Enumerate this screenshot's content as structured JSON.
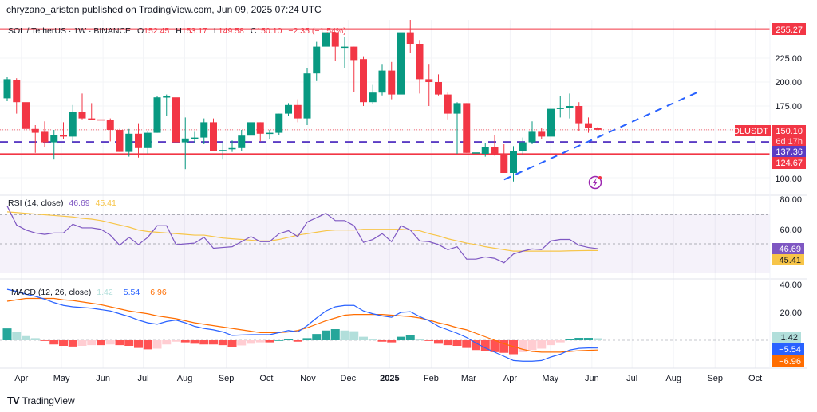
{
  "header": {
    "published": "chryzano_ariston published on TradingView.com, Jun 09, 2025 07:24 UTC"
  },
  "legend": {
    "symbol": "SOL / TetherUS · 1W · BINANCE",
    "o_label": "O",
    "o": "152.45",
    "h_label": "H",
    "h": "153.17",
    "l_label": "L",
    "l": "149.58",
    "c_label": "C",
    "c": "150.10",
    "change": "−2.35 (−1.54%)"
  },
  "rsi_legend": {
    "title": "RSI (14, close)",
    "rsi": "46.69",
    "ma": "45.41"
  },
  "macd_legend": {
    "title": "MACD (12, 26, close)",
    "hist": "1.42",
    "macd": "−5.54",
    "signal": "−6.96"
  },
  "badges": {
    "resistance": "255.27",
    "symbol": "SOLUSDT",
    "last": "150.10",
    "countdown": "6d 17h",
    "mid": "137.36",
    "support": "124.67",
    "rsi": "46.69",
    "rsi_ma": "45.41",
    "hist": "1.42",
    "macd": "−5.54",
    "signal": "−6.96"
  },
  "price_axis": [
    "225.00",
    "200.00",
    "175.00",
    "100.00"
  ],
  "rsi_axis": [
    "80.00",
    "60.00"
  ],
  "macd_axis": [
    "40.00",
    "20.00"
  ],
  "footer": {
    "brand": "TradingView"
  },
  "colors": {
    "up": "#089981",
    "down": "#f23645",
    "rsi": "#7e57c2",
    "rsi_ma": "#f7c548",
    "macd": "#2962ff",
    "signal": "#ff6d00",
    "level": "#f23645",
    "mid": "#5b3cc4",
    "trend": "#2962ff"
  },
  "icons": {
    "lightning": "lightning-icon",
    "logo": "tradingview-logo"
  },
  "chart_data": {
    "type": "candlestick",
    "symbol": "SOL / TetherUS",
    "interval": "1W",
    "exchange": "BINANCE",
    "price_range": [
      80,
      262
    ],
    "x_ticks": [
      {
        "label": "Apr",
        "date": "2024-04-01"
      },
      {
        "label": "May",
        "date": "2024-05-01"
      },
      {
        "label": "Jun",
        "date": "2024-06-01"
      },
      {
        "label": "Jul",
        "date": "2024-07-01"
      },
      {
        "label": "Aug",
        "date": "2024-08-01"
      },
      {
        "label": "Sep",
        "date": "2024-09-01"
      },
      {
        "label": "Oct",
        "date": "2024-10-01"
      },
      {
        "label": "Nov",
        "date": "2024-11-01"
      },
      {
        "label": "Dec",
        "date": "2024-12-01"
      },
      {
        "label": "2025",
        "date": "2025-01-01"
      },
      {
        "label": "Feb",
        "date": "2025-02-01"
      },
      {
        "label": "Mar",
        "date": "2025-03-01"
      },
      {
        "label": "Apr",
        "date": "2025-04-01"
      },
      {
        "label": "May",
        "date": "2025-05-01"
      },
      {
        "label": "Jun",
        "date": "2025-06-01"
      },
      {
        "label": "Jul",
        "date": "2025-07-01"
      },
      {
        "label": "Aug",
        "date": "2025-08-01"
      },
      {
        "label": "Sep",
        "date": "2025-09-01"
      },
      {
        "label": "Oct",
        "date": "2025-10-01"
      }
    ],
    "candles_columns": [
      "date",
      "open",
      "high",
      "low",
      "close"
    ],
    "candles": [
      [
        "2024-03-25",
        183,
        205,
        180,
        203
      ],
      [
        "2024-04-01",
        202,
        204,
        167,
        179
      ],
      [
        "2024-04-08",
        179,
        184,
        117,
        151
      ],
      [
        "2024-04-15",
        151,
        155,
        126,
        147
      ],
      [
        "2024-04-22",
        148,
        159,
        132,
        137
      ],
      [
        "2024-04-29",
        137,
        150,
        119,
        145
      ],
      [
        "2024-05-06",
        145,
        158,
        140,
        143
      ],
      [
        "2024-05-13",
        143,
        176,
        137,
        169
      ],
      [
        "2024-05-20",
        169,
        188,
        161,
        162
      ],
      [
        "2024-05-27",
        162,
        178,
        160,
        161
      ],
      [
        "2024-06-03",
        161,
        175,
        152,
        160
      ],
      [
        "2024-06-10",
        160,
        162,
        138,
        150
      ],
      [
        "2024-06-17",
        150,
        151,
        127,
        127
      ],
      [
        "2024-06-24",
        127,
        151,
        122,
        146
      ],
      [
        "2024-07-01",
        146,
        157,
        121,
        131
      ],
      [
        "2024-07-08",
        131,
        149,
        125,
        147
      ],
      [
        "2024-07-15",
        147,
        185,
        147,
        184
      ],
      [
        "2024-07-22",
        184,
        187,
        165,
        185
      ],
      [
        "2024-07-29",
        184,
        192,
        132,
        137
      ],
      [
        "2024-08-05",
        137,
        163,
        109,
        141
      ],
      [
        "2024-08-12",
        141,
        148,
        136,
        142
      ],
      [
        "2024-08-19",
        142,
        162,
        135,
        158
      ],
      [
        "2024-08-26",
        158,
        162,
        128,
        128
      ],
      [
        "2024-09-02",
        128,
        137,
        119,
        129
      ],
      [
        "2024-09-09",
        130,
        139,
        127,
        131
      ],
      [
        "2024-09-16",
        131,
        150,
        128,
        144
      ],
      [
        "2024-09-23",
        144,
        160,
        142,
        158
      ],
      [
        "2024-09-30",
        158,
        158,
        138,
        146
      ],
      [
        "2024-10-07",
        146,
        150,
        140,
        147
      ],
      [
        "2024-10-14",
        147,
        167,
        145,
        167
      ],
      [
        "2024-10-21",
        167,
        178,
        165,
        176
      ],
      [
        "2024-10-28",
        176,
        182,
        158,
        162
      ],
      [
        "2024-11-04",
        162,
        215,
        155,
        209
      ],
      [
        "2024-11-11",
        209,
        242,
        201,
        237
      ],
      [
        "2024-11-18",
        237,
        263,
        229,
        252
      ],
      [
        "2024-11-25",
        252,
        252,
        222,
        237
      ],
      [
        "2024-12-02",
        236,
        247,
        215,
        237
      ],
      [
        "2024-12-09",
        237,
        237,
        190,
        223
      ],
      [
        "2024-12-16",
        224,
        227,
        175,
        179
      ],
      [
        "2024-12-23",
        179,
        197,
        177,
        189
      ],
      [
        "2024-12-30",
        189,
        219,
        186,
        212
      ],
      [
        "2025-01-06",
        212,
        221,
        182,
        187
      ],
      [
        "2025-01-13",
        187,
        266,
        169,
        252
      ],
      [
        "2025-01-20",
        252,
        266,
        230,
        240
      ],
      [
        "2025-01-27",
        240,
        244,
        188,
        203
      ],
      [
        "2025-02-03",
        203,
        219,
        175,
        200
      ],
      [
        "2025-02-10",
        200,
        208,
        186,
        187
      ],
      [
        "2025-02-17",
        187,
        189,
        161,
        167
      ],
      [
        "2025-02-24",
        167,
        179,
        125,
        178
      ],
      [
        "2025-03-03",
        178,
        178,
        126,
        126
      ],
      [
        "2025-03-10",
        126,
        134,
        112,
        126.5
      ],
      [
        "2025-03-17",
        125,
        136,
        122,
        132
      ],
      [
        "2025-03-24",
        132,
        145,
        123,
        125
      ],
      [
        "2025-03-31",
        125,
        135,
        105,
        105
      ],
      [
        "2025-04-07",
        105,
        133,
        96,
        128
      ],
      [
        "2025-04-14",
        128,
        142,
        124,
        137
      ],
      [
        "2025-04-21",
        137,
        159,
        135,
        148
      ],
      [
        "2025-04-28",
        148,
        152,
        140,
        143
      ],
      [
        "2025-05-05",
        143,
        180,
        142,
        172
      ],
      [
        "2025-05-12",
        172,
        185,
        163,
        173
      ],
      [
        "2025-05-19",
        173,
        188,
        162,
        175
      ],
      [
        "2025-05-26",
        175,
        179,
        149,
        157
      ],
      [
        "2025-06-02",
        157,
        163,
        147,
        152
      ],
      [
        "2025-06-09",
        152.45,
        153.17,
        149.58,
        150.1
      ]
    ],
    "horizontal_levels": [
      {
        "price": 255.27,
        "style": "solid",
        "color": "#f23645"
      },
      {
        "price": 137.36,
        "style": "dashed",
        "color": "#5b3cc4"
      },
      {
        "price": 124.67,
        "style": "solid",
        "color": "#f23645"
      }
    ],
    "trendline": {
      "style": "dashed",
      "color": "#2962ff",
      "points": [
        [
          "2025-03-31",
          98
        ],
        [
          "2025-08-25",
          191
        ]
      ]
    },
    "rsi": {
      "period": 14,
      "bands": [
        70,
        50,
        30
      ],
      "range": [
        20,
        90
      ],
      "values": [
        76,
        63,
        59.5,
        57.5,
        56.5,
        57.5,
        57.5,
        63.5,
        61,
        61,
        60,
        56,
        49,
        54.5,
        49.5,
        54.5,
        62.5,
        62.5,
        49.5,
        50,
        50.5,
        54.5,
        47,
        47.5,
        48,
        51.5,
        55,
        51.5,
        51.5,
        57,
        59,
        55,
        65,
        68,
        71,
        66,
        66,
        62.5,
        51,
        53,
        57,
        51.5,
        62.5,
        59.5,
        52,
        51.5,
        49.5,
        46,
        48,
        39.5,
        39.5,
        41,
        40,
        37,
        43,
        45,
        46.5,
        46,
        52,
        53,
        53,
        49,
        47.5,
        46.69
      ],
      "ma": [
        72,
        71.5,
        71,
        70.5,
        70,
        69.5,
        69,
        68.5,
        67.5,
        67,
        66,
        64.5,
        63,
        61.5,
        59.5,
        58.5,
        58,
        57.5,
        57,
        56.5,
        56,
        56,
        55,
        54,
        53.5,
        53,
        52.5,
        52,
        52,
        53,
        54.5,
        56,
        57,
        58,
        59,
        59.5,
        59.5,
        59.5,
        60,
        60,
        60,
        60,
        60,
        59.5,
        59,
        57,
        55.5,
        53.5,
        52,
        50.5,
        49.5,
        48,
        47,
        46,
        45,
        45,
        45,
        45,
        45,
        45,
        45.2,
        45.3,
        45.4,
        45.41
      ]
    },
    "macd": {
      "params": [
        12,
        26
      ],
      "range": [
        -20,
        45
      ],
      "macd": [
        36.5,
        35,
        33,
        31.5,
        29.5,
        27,
        25,
        24,
        23.5,
        23,
        22,
        21,
        19,
        17,
        14.5,
        12.5,
        11.5,
        13.5,
        14.5,
        12.5,
        10,
        8.5,
        7.5,
        6,
        3.5,
        3.8,
        4,
        4,
        4,
        5.5,
        7,
        6,
        10.5,
        16,
        21,
        24,
        25,
        25,
        21,
        19,
        17.5,
        16.5,
        20,
        20.5,
        17,
        14,
        10,
        7.5,
        5,
        2,
        -2,
        -5.5,
        -8.5,
        -11.5,
        -14.5,
        -15,
        -15,
        -14.5,
        -12,
        -10,
        -7,
        -5.8,
        -5.5,
        -5.54
      ],
      "signal": [
        28,
        29,
        30,
        30,
        30,
        30,
        29,
        28.5,
        27.5,
        26.5,
        25.5,
        24,
        22.5,
        21,
        20,
        19,
        17.5,
        16.5,
        15.5,
        14,
        12.5,
        11.5,
        10.5,
        9.5,
        8.5,
        7.5,
        6.5,
        5.5,
        5.5,
        5.5,
        6,
        7,
        9,
        11.5,
        14,
        16,
        18,
        18.5,
        18.5,
        18.5,
        18.5,
        18,
        17.5,
        17,
        16,
        14.5,
        12.5,
        11,
        9,
        7.5,
        5,
        2.5,
        0,
        -2.5,
        -4.5,
        -6.5,
        -8,
        -8.5,
        -8.5,
        -8.5,
        -8,
        -7.5,
        -7.2,
        -6.96
      ],
      "histogram": [
        8.5,
        6,
        3,
        1.5,
        -0.5,
        -3,
        -4,
        -4.5,
        -4,
        -3.5,
        -3.5,
        -3,
        -3.5,
        -4,
        -5.5,
        -6.5,
        -6,
        -3,
        -1,
        -1.5,
        -2.5,
        -3,
        -3,
        -3.5,
        -5,
        -3.7,
        -2.5,
        -1.5,
        -1.5,
        0,
        1,
        -1,
        1.5,
        4.5,
        7,
        8,
        7,
        6.5,
        2.5,
        0.5,
        -1,
        -1.5,
        2.5,
        3.5,
        1,
        -0.5,
        -2.5,
        -3.5,
        -4,
        -5.5,
        -7,
        -8,
        -8.5,
        -9,
        -10,
        -8.5,
        -7,
        -6,
        -3.5,
        -1.5,
        1,
        1.7,
        1.7,
        1.42
      ]
    }
  }
}
